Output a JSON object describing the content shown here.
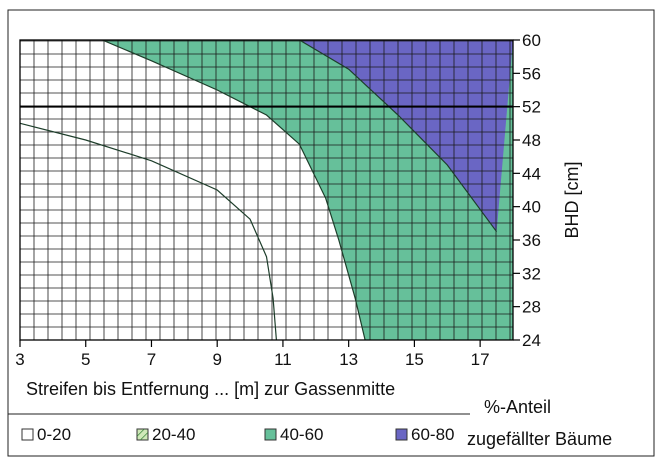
{
  "chart_data": {
    "type": "area",
    "xlabel": "Streifen bis Entfernung ... [m] zur Gassenmitte",
    "ylabel": "BHD [cm]",
    "x_ticks": [
      3,
      5,
      7,
      9,
      11,
      13,
      15,
      17
    ],
    "y_ticks": [
      24,
      28,
      32,
      36,
      40,
      44,
      48,
      52,
      56,
      60
    ],
    "xlim": [
      3,
      18
    ],
    "ylim": [
      24,
      60
    ],
    "grid": true,
    "reference_line_y": 52,
    "legend_title": [
      "%-Anteil",
      "zugefällter Bäume"
    ],
    "legend_position": "bottom",
    "classes": [
      {
        "label": "0-20",
        "color": "#ffffff",
        "hatch": "grid"
      },
      {
        "label": "20-40",
        "color": "#cfe9b8",
        "hatch": "diagonal"
      },
      {
        "label": "40-60",
        "color": "#66c09a",
        "hatch": "grid"
      },
      {
        "label": "60-80",
        "color": "#6a66c4",
        "hatch": "grid"
      }
    ],
    "boundaries": [
      {
        "name": "0-20 | 20-40",
        "points": [
          [
            3,
            50
          ],
          [
            5,
            48
          ],
          [
            7,
            45.5
          ],
          [
            9,
            42
          ],
          [
            10,
            38.5
          ],
          [
            10.5,
            34
          ],
          [
            10.7,
            29
          ],
          [
            10.8,
            24
          ]
        ]
      },
      {
        "name": "20-40 | 40-60",
        "points": [
          [
            5.5,
            60
          ],
          [
            7,
            57.5
          ],
          [
            9,
            54
          ],
          [
            10.5,
            51
          ],
          [
            11.5,
            47.5
          ],
          [
            12.3,
            41
          ],
          [
            12.7,
            36
          ],
          [
            13.2,
            29
          ],
          [
            13.5,
            24
          ]
        ]
      },
      {
        "name": "40-60 | 60-80",
        "points": [
          [
            11.5,
            60
          ],
          [
            13,
            56.5
          ],
          [
            14.5,
            51
          ],
          [
            16,
            45
          ],
          [
            17.5,
            37
          ]
        ]
      }
    ]
  }
}
